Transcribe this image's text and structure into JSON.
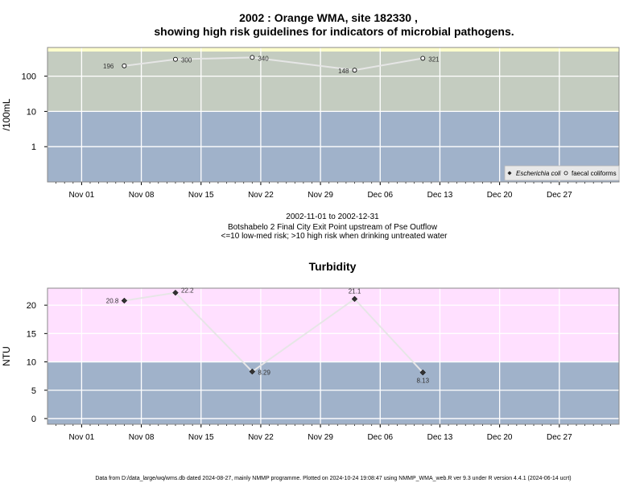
{
  "title_line1": "2002 : Orange WMA, site 182330 ,",
  "title_line2": "showing high risk guidelines for indicators of microbial pathogens.",
  "info_line1": "2002-11-01 to 2002-12-31",
  "info_line2": "Botshabelo 2 Final City Exit Point upstream of Pse Outflow",
  "info_line3": "<=10 low-med risk; >10 high risk when drinking untreated water",
  "footer": "Data from D:/data_large/wq/wms.db dated 2024-08-27, mainly NMMP programme. Plotted on 2024-10-24 19:08:47 using NMMP_WMA_web.R ver 9.3 under R version 4.4.1 (2024-06-14 ucrt)",
  "colors": {
    "low_band": "#a0b2ca",
    "high_band_micro": "#c4ccc0",
    "high_band_turb": "#ffe0ff",
    "line": "#e6e6e6",
    "top_strip": "#ffffcc"
  },
  "chart_data": [
    {
      "type": "line",
      "title": "",
      "ylabel": "/100mL",
      "y_scale": "log",
      "ylim": [
        0.1,
        500
      ],
      "y_ticks": [
        "1",
        "10",
        "100"
      ],
      "risk_threshold": 10,
      "x_range": [
        "2002-10-28",
        "2003-01-03"
      ],
      "x_ticks": [
        "Nov 01",
        "Nov 08",
        "Nov 15",
        "Nov 22",
        "Nov 29",
        "Dec 06",
        "Dec 13",
        "Dec 20",
        "Dec 27"
      ],
      "legend_placement": "bottom-right",
      "legend": [
        "Escherichia coli",
        "faecal coliforms"
      ],
      "series": [
        {
          "name": "faecal coliforms",
          "marker": "open-circle",
          "points": [
            {
              "date": "2002-11-06",
              "value": 196,
              "label": "196"
            },
            {
              "date": "2002-11-12",
              "value": 300,
              "label": "300"
            },
            {
              "date": "2002-11-21",
              "value": 340,
              "label": "340"
            },
            {
              "date": "2002-12-03",
              "value": 148,
              "label": "148"
            },
            {
              "date": "2002-12-11",
              "value": 321,
              "label": "321"
            }
          ]
        }
      ]
    },
    {
      "type": "line",
      "title": "Turbidity",
      "ylabel": "NTU",
      "y_scale": "linear",
      "ylim": [
        -1,
        23
      ],
      "y_ticks": [
        "0",
        "5",
        "10",
        "15",
        "20"
      ],
      "risk_threshold": 10,
      "x_range": [
        "2002-10-28",
        "2003-01-03"
      ],
      "x_ticks": [
        "Nov 01",
        "Nov 08",
        "Nov 15",
        "Nov 22",
        "Nov 29",
        "Dec 06",
        "Dec 13",
        "Dec 20",
        "Dec 27"
      ],
      "series": [
        {
          "marker": "filled-diamond",
          "points": [
            {
              "date": "2002-11-06",
              "value": 20.8,
              "label": "20.8"
            },
            {
              "date": "2002-11-12",
              "value": 22.2,
              "label": "22.2"
            },
            {
              "date": "2002-11-21",
              "value": 8.29,
              "label": "8.29"
            },
            {
              "date": "2002-12-03",
              "value": 21.1,
              "label": "21.1"
            },
            {
              "date": "2002-12-11",
              "value": 8.13,
              "label": "8.13"
            }
          ]
        }
      ]
    }
  ]
}
